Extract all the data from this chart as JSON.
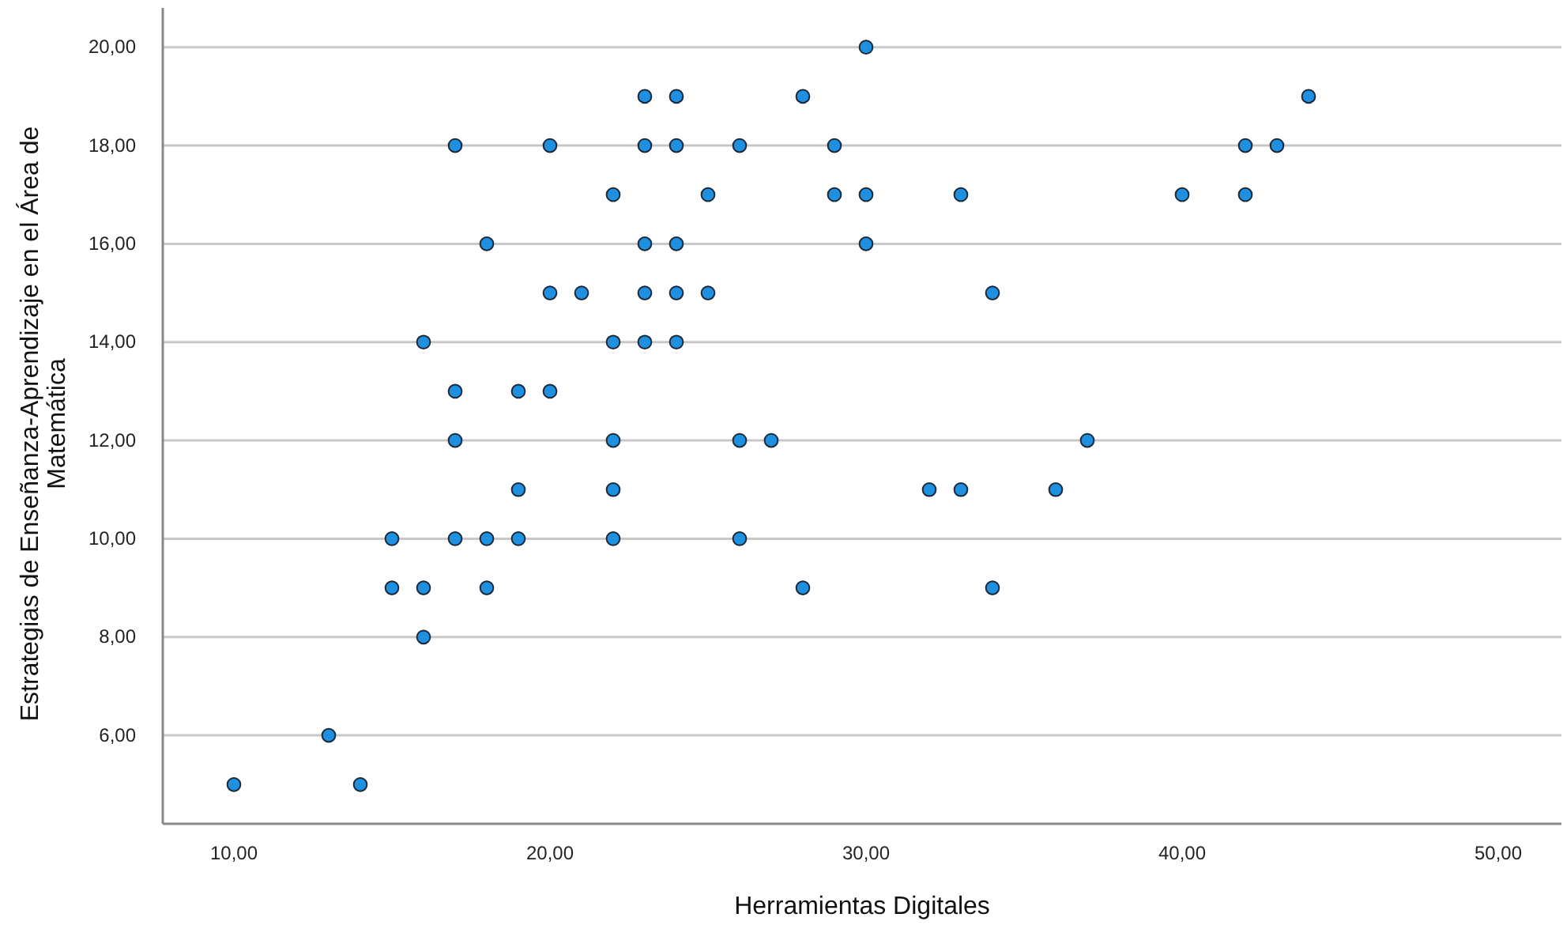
{
  "chart_data": {
    "type": "scatter",
    "xlabel": "Herramientas Digitales",
    "ylabel": "Estrategias de Enseñanza-Aprendizaje en el Área de Matemática",
    "xlim": [
      7.75,
      52
    ],
    "ylim": [
      4.2,
      20.8
    ],
    "xticks": [
      {
        "value": 10,
        "label": "10,00"
      },
      {
        "value": 20,
        "label": "20,00"
      },
      {
        "value": 30,
        "label": "30,00"
      },
      {
        "value": 40,
        "label": "40,00"
      },
      {
        "value": 50,
        "label": "50,00"
      }
    ],
    "yticks": [
      {
        "value": 6,
        "label": "6,00"
      },
      {
        "value": 8,
        "label": "8,00"
      },
      {
        "value": 10,
        "label": "10,00"
      },
      {
        "value": 12,
        "label": "12,00"
      },
      {
        "value": 14,
        "label": "14,00"
      },
      {
        "value": 16,
        "label": "16,00"
      },
      {
        "value": 18,
        "label": "18,00"
      },
      {
        "value": 20,
        "label": "20,00"
      }
    ],
    "grid": "y",
    "marker": "circle",
    "series": [
      {
        "color": "#1f8fdf",
        "x": [
          30,
          23,
          24,
          28,
          44,
          17,
          20,
          23,
          24,
          26,
          29,
          42,
          43,
          22,
          25,
          29,
          30,
          33,
          40,
          42,
          18,
          23,
          24,
          30,
          20,
          21,
          23,
          24,
          25,
          34,
          16,
          22,
          23,
          24,
          17,
          19,
          20,
          17,
          22,
          26,
          27,
          37,
          19,
          22,
          32,
          33,
          36,
          15,
          17,
          18,
          19,
          22,
          26,
          15,
          16,
          18,
          28,
          34,
          16,
          13,
          10,
          14
        ],
        "values": [
          20,
          19,
          19,
          19,
          19,
          18,
          18,
          18,
          18,
          18,
          18,
          18,
          18,
          17,
          17,
          17,
          17,
          17,
          17,
          17,
          16,
          16,
          16,
          16,
          15,
          15,
          15,
          15,
          15,
          15,
          14,
          14,
          14,
          14,
          13,
          13,
          13,
          12,
          12,
          12,
          12,
          12,
          11,
          11,
          11,
          11,
          11,
          10,
          10,
          10,
          10,
          10,
          10,
          9,
          9,
          9,
          9,
          9,
          8,
          6,
          5,
          5
        ]
      }
    ]
  }
}
